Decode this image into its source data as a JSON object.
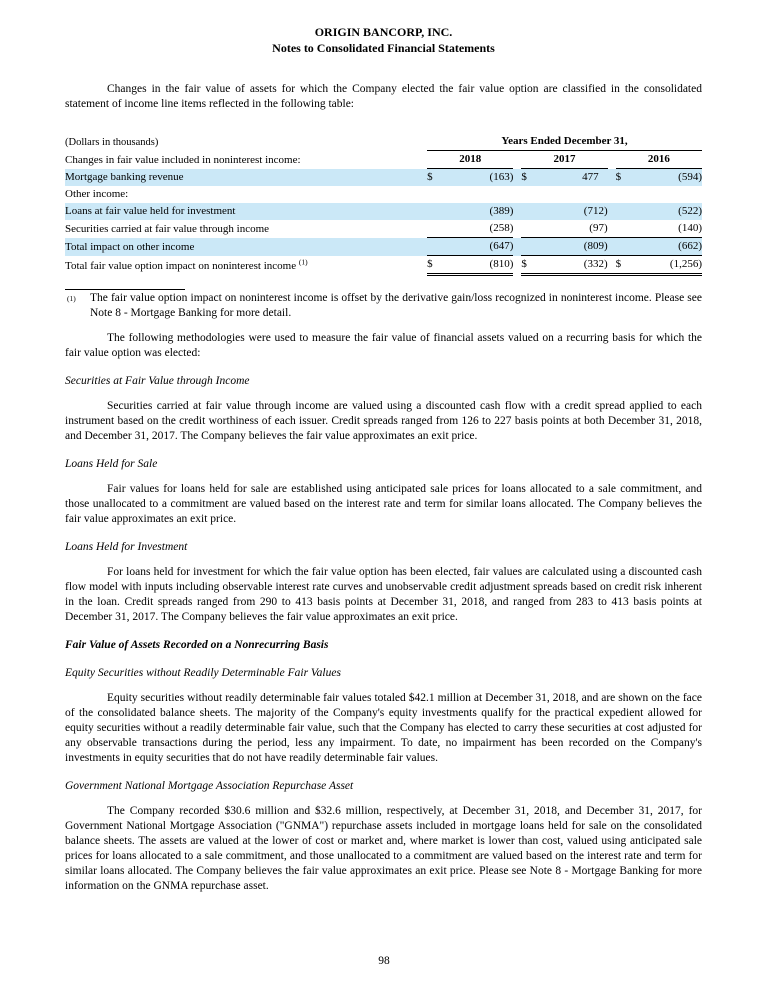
{
  "page": {
    "title_line1": "ORIGIN BANCORP, INC.",
    "title_line2": "Notes to Consolidated Financial Statements",
    "page_number": "98"
  },
  "colors": {
    "row_highlight": "#cbe8f7",
    "text": "#000000",
    "background": "#ffffff"
  },
  "intro_paragraph": "Changes in the fair value of assets for which the Company elected the fair value option are classified in the consolidated statement of income line items reflected in the following table:",
  "table": {
    "units_label": "(Dollars in thousands)",
    "years_header": "Years Ended December 31,",
    "section_label": "Changes in fair value included in noninterest income:",
    "columns": [
      "2018",
      "2017",
      "2016"
    ],
    "rows": [
      {
        "label": "Mortgage banking revenue",
        "sup": "",
        "dollar": "$",
        "values": [
          "(163)",
          "477",
          "(594)"
        ]
      },
      {
        "label": "Other income:",
        "sup": "",
        "dollar": "",
        "values": [
          "",
          "",
          ""
        ]
      },
      {
        "label": "Loans at fair value held for investment",
        "sup": "",
        "dollar": "",
        "values": [
          "(389)",
          "(712)",
          "(522)"
        ]
      },
      {
        "label": "Securities carried at fair value through income",
        "sup": "",
        "dollar": "",
        "values": [
          "(258)",
          "(97)",
          "(140)"
        ]
      },
      {
        "label": "Total impact on other income",
        "sup": "",
        "dollar": "",
        "values": [
          "(647)",
          "(809)",
          "(662)"
        ]
      },
      {
        "label": "Total fair value option impact on noninterest income",
        "sup": "(1)",
        "dollar": "$",
        "values": [
          "(810)",
          "(332)",
          "(1,256)"
        ]
      }
    ]
  },
  "footnote": {
    "marker": "(1)",
    "text": "The fair value option impact on noninterest income is offset by the derivative gain/loss recognized in noninterest income. Please see Note 8 - Mortgage Banking for more detail."
  },
  "sections": [
    {
      "type": "paragraph",
      "text": "The following methodologies were used to measure the fair value of financial assets valued on a recurring basis for which the fair value option was elected:"
    },
    {
      "type": "heading_italic",
      "text": "Securities at Fair Value through Income"
    },
    {
      "type": "paragraph",
      "text": "Securities carried at fair value through income are valued using a discounted cash flow with a credit spread applied to each instrument based on the credit worthiness of each issuer. Credit spreads ranged from 126 to 227 basis points at both December 31, 2018, and December 31, 2017. The Company believes the fair value approximates an exit price."
    },
    {
      "type": "heading_italic",
      "text": "Loans Held for Sale"
    },
    {
      "type": "paragraph",
      "text": "Fair values for loans held for sale are established using anticipated sale prices for loans allocated to a sale commitment, and those unallocated to a commitment are valued based on the interest rate and term for similar loans allocated. The Company believes the fair value approximates an exit price."
    },
    {
      "type": "heading_italic",
      "text": "Loans Held for Investment"
    },
    {
      "type": "paragraph",
      "text": "For loans held for investment for which the fair value option has been elected, fair values are calculated using a discounted cash flow model with inputs including observable interest rate curves and unobservable credit adjustment spreads based on credit risk inherent in the loan. Credit spreads ranged from 290 to 413 basis points at December 31, 2018, and ranged from 283 to 413 basis points at December 31, 2017. The Company believes the fair value approximates an exit price."
    },
    {
      "type": "heading_bold_italic",
      "text": "Fair Value of Assets Recorded on a Nonrecurring Basis"
    },
    {
      "type": "heading_italic",
      "text": "Equity Securities without Readily Determinable Fair Values"
    },
    {
      "type": "paragraph",
      "text": "Equity securities without readily determinable fair values totaled $42.1 million at December 31, 2018, and are shown on the face of the consolidated balance sheets. The majority of the Company's equity investments qualify for the practical expedient allowed for equity securities without a readily determinable fair value, such that the Company has elected to carry these securities at cost adjusted for any observable transactions during the period, less any impairment. To date, no impairment has been recorded on the Company's investments in equity securities that do not have readily determinable fair values."
    },
    {
      "type": "heading_italic",
      "text": "Government National Mortgage Association Repurchase Asset"
    },
    {
      "type": "paragraph",
      "text": "The Company recorded $30.6 million and $32.6 million, respectively, at December 31, 2018, and December 31, 2017, for Government National Mortgage Association (\"GNMA\") repurchase assets included in mortgage loans held for sale on the consolidated balance sheets. The assets are valued at the lower of cost or market and, where market is lower than cost, valued using anticipated sale prices for loans allocated to a sale commitment, and those unallocated to a commitment are valued based on the interest rate and term for similar loans allocated. The Company believes the fair value approximates an exit price. Please see Note 8 - Mortgage Banking for more information on the GNMA repurchase asset."
    }
  ]
}
